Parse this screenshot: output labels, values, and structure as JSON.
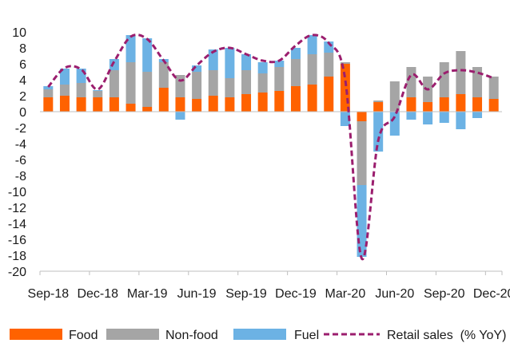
{
  "chart_data": {
    "type": "bar",
    "stacked": true,
    "ylim": [
      -20,
      10
    ],
    "yticks": [
      10,
      8,
      6,
      4,
      2,
      0,
      -2,
      -4,
      -6,
      -8,
      -10,
      -12,
      -14,
      -16,
      -18,
      -20
    ],
    "x_tick_labels": [
      "Sep-18",
      "Dec-18",
      "Mar-19",
      "Jun-19",
      "Sep-19",
      "Dec-19",
      "Mar-20",
      "Jun-20",
      "Sep-20",
      "Dec-20"
    ],
    "categories": [
      "Sep-18",
      "Oct-18",
      "Nov-18",
      "Dec-18",
      "Jan-19",
      "Feb-19",
      "Mar-19",
      "Apr-19",
      "May-19",
      "Jun-19",
      "Jul-19",
      "Aug-19",
      "Sep-19",
      "Oct-19",
      "Nov-19",
      "Dec-19",
      "Jan-20",
      "Feb-20",
      "Mar-20",
      "Apr-20",
      "May-20",
      "Jun-20",
      "Jul-20",
      "Aug-20",
      "Sep-20",
      "Oct-20",
      "Nov-20",
      "Dec-20"
    ],
    "series": [
      {
        "name": "Food",
        "kind": "bar",
        "color": "#FF6200",
        "values": [
          1.8,
          2.0,
          1.8,
          1.8,
          1.8,
          1.0,
          0.6,
          3.0,
          1.8,
          1.6,
          2.0,
          1.8,
          2.2,
          2.4,
          2.6,
          3.2,
          3.4,
          4.4,
          6.0,
          -1.2,
          1.2,
          0.0,
          1.8,
          1.2,
          1.8,
          2.2,
          1.8,
          1.6
        ]
      },
      {
        "name": "Non-food",
        "kind": "bar",
        "color": "#A5A5A5",
        "values": [
          1.0,
          1.4,
          1.8,
          0.8,
          3.4,
          5.2,
          4.4,
          3.2,
          2.8,
          3.4,
          3.2,
          2.4,
          3.0,
          2.4,
          3.0,
          3.4,
          3.8,
          3.0,
          0.2,
          -8.0,
          0.2,
          3.8,
          3.8,
          3.2,
          4.4,
          5.4,
          3.8,
          2.8
        ]
      },
      {
        "name": "Fuel",
        "kind": "bar",
        "color": "#6CB2E4",
        "values": [
          0.4,
          2.0,
          1.8,
          0.1,
          1.4,
          3.4,
          4.2,
          0.4,
          -1.0,
          0.8,
          2.6,
          3.8,
          2.0,
          1.4,
          0.8,
          1.4,
          2.4,
          1.4,
          -1.8,
          -9.0,
          -5.0,
          -3.0,
          -1.0,
          -1.6,
          -1.4,
          -2.2,
          -0.8,
          0.0
        ]
      },
      {
        "name": "Retail sales  (% YoY)",
        "kind": "line",
        "color": "#9B1E6E",
        "dash": true,
        "values": [
          3.1,
          5.5,
          5.3,
          2.8,
          6.3,
          9.4,
          9.1,
          6.4,
          3.9,
          5.8,
          7.5,
          8.0,
          7.2,
          6.4,
          6.4,
          8.3,
          9.6,
          8.6,
          4.0,
          -18.4,
          -3.6,
          -0.6,
          4.6,
          2.8,
          4.8,
          5.2,
          4.9,
          4.2
        ]
      }
    ],
    "legend_position": "bottom",
    "grid": false
  }
}
